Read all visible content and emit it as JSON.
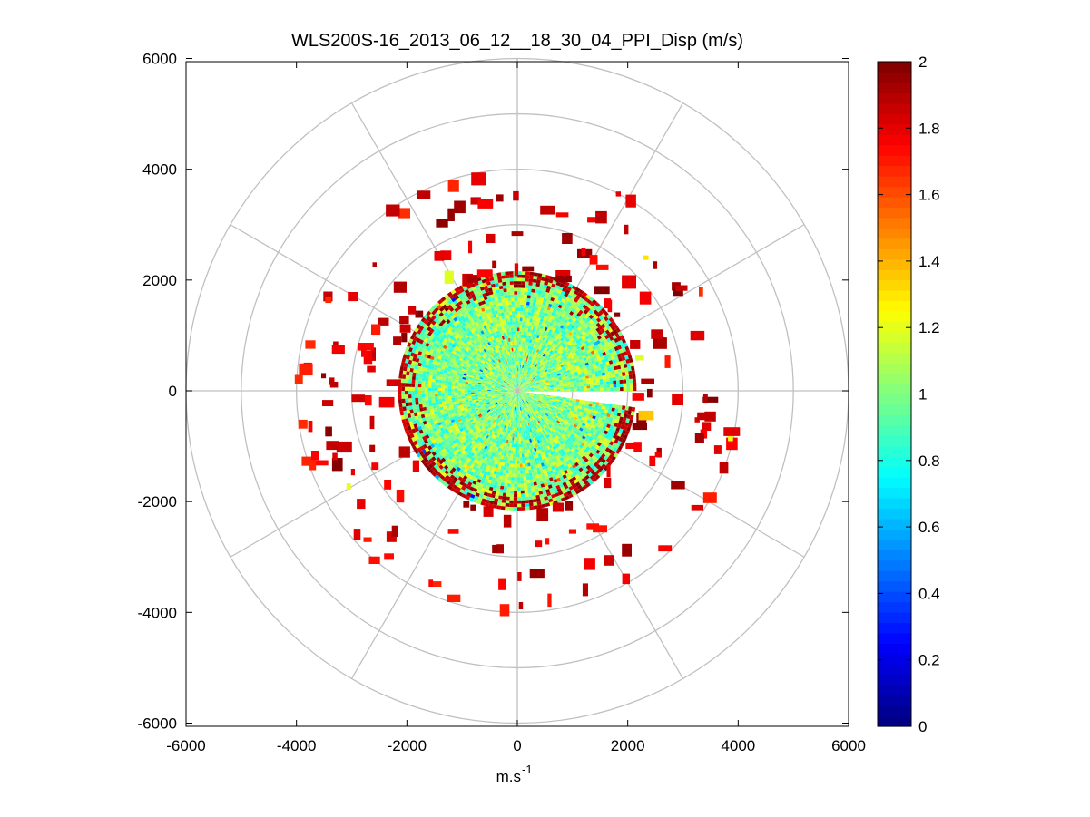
{
  "chart_data": {
    "type": "polar-ppi-scatter",
    "title": "WLS200S-16_2013_06_12__18_30_04_PPI_Disp (m/s)",
    "xlabel": "m.s",
    "xlabel_superscript": "-1",
    "ylabel": "",
    "xlim": [
      -6000,
      6000
    ],
    "ylim": [
      -6000,
      6000
    ],
    "xticks": [
      -6000,
      -4000,
      -2000,
      0,
      2000,
      4000,
      6000
    ],
    "yticks": [
      -6000,
      -4000,
      -2000,
      0,
      2000,
      4000,
      6000
    ],
    "xtick_labels": [
      "-6000",
      "-4000",
      "-2000",
      "0",
      "2000",
      "4000",
      "6000"
    ],
    "ytick_labels": [
      "-6000",
      "-4000",
      "-2000",
      "0",
      "2000",
      "4000",
      "6000"
    ],
    "polar_grid": {
      "rings": [
        1000,
        2000,
        3000,
        4000,
        5000,
        6000
      ],
      "spokes_deg": [
        0,
        30,
        60,
        90,
        120,
        150,
        180,
        210,
        240,
        270,
        300,
        330
      ]
    },
    "colormap": "jet",
    "colorbar": {
      "range": [
        0,
        2
      ],
      "ticks": [
        0,
        0.2,
        0.4,
        0.6,
        0.8,
        1,
        1.2,
        1.4,
        1.6,
        1.8,
        2
      ],
      "tick_labels": [
        "0",
        "0.2",
        "0.4",
        "0.6",
        "0.8",
        "1",
        "1.2",
        "1.4",
        "1.6",
        "1.8",
        "2"
      ]
    },
    "field": {
      "dense_core": {
        "r_min": 0,
        "r_max": 2150,
        "mean_value": 1.0,
        "edge_value": 2.0,
        "gap_sector_deg": [
          352,
          360
        ]
      },
      "sparse_rings": [
        {
          "radius": 2300,
          "value": 2.0
        },
        {
          "radius": 2800,
          "value": 1.95
        },
        {
          "radius": 3400,
          "value": 2.0
        },
        {
          "radius": 3900,
          "value": 1.9
        }
      ]
    }
  }
}
